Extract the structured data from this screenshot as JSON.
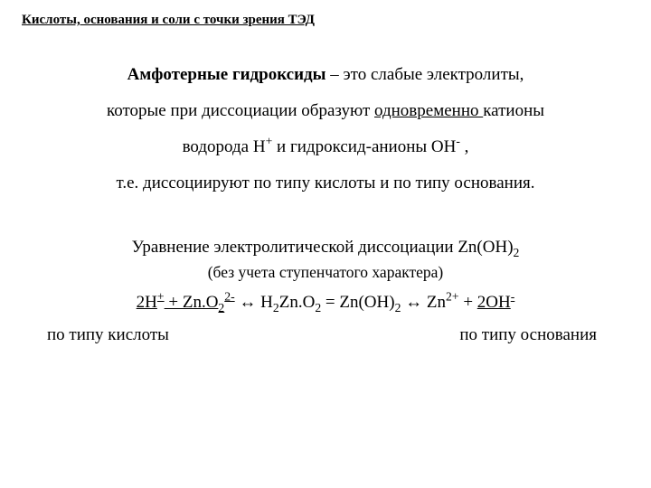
{
  "header": "Кислоты, основания и соли с точки зрения ТЭД",
  "def": {
    "term": "Амфотерные гидроксиды",
    "p1_after": " – это слабые электролиты,",
    "p2_before": "которые при диссоциации образуют ",
    "p2_under": "одновременно ",
    "p2_after": " катионы",
    "p3_a": "водорода Н",
    "p3_b": " и гидроксид-анионы ОН",
    "p3_c": " ,",
    "p4": "т.е. диссоциируют по типу кислоты и по типу основания."
  },
  "eq": {
    "title_a": "Уравнение электролитической диссоциации  Zn(OH)",
    "subtitle": "(без учета ступенчатого характера)",
    "lhs_a": "2Н",
    "lhs_b": " + Zn.O",
    "arrow": "  ↔  ",
    "mid_a": "H",
    "mid_b": "Zn.O",
    "mid_c": " = Zn(OH)",
    "rhs_a": "Zn",
    "rhs_b": " + ",
    "rhs_c": "2ОН"
  },
  "footer": {
    "left": "по типу кислоты",
    "right": "по типу основания"
  },
  "style": {
    "text_color": "#000000",
    "background": "#ffffff",
    "header_fontsize": 15,
    "body_fontsize": 19,
    "subtitle_fontsize": 17.5,
    "font_family": "Times New Roman"
  }
}
